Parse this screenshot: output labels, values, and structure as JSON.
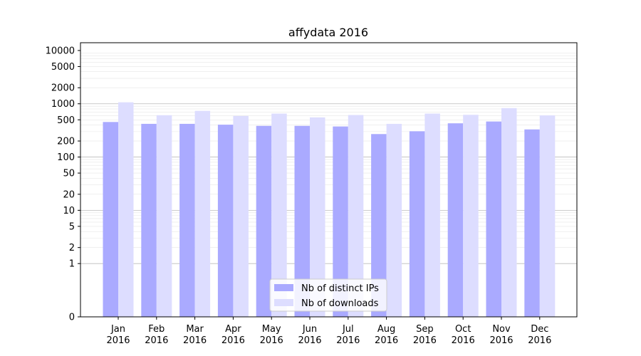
{
  "chart_data": {
    "type": "bar",
    "title": "affydata 2016",
    "xlabel": "",
    "ylabel": "",
    "yscale": "symlog",
    "ylim": [
      0,
      14000
    ],
    "yticks": [
      0,
      1,
      2,
      5,
      10,
      20,
      50,
      100,
      200,
      500,
      1000,
      2000,
      5000,
      10000
    ],
    "grid": "horizontal",
    "legend_position": "bottom-center",
    "categories": [
      [
        "Jan",
        "2016"
      ],
      [
        "Feb",
        "2016"
      ],
      [
        "Mar",
        "2016"
      ],
      [
        "Apr",
        "2016"
      ],
      [
        "May",
        "2016"
      ],
      [
        "Jun",
        "2016"
      ],
      [
        "Jul",
        "2016"
      ],
      [
        "Aug",
        "2016"
      ],
      [
        "Sep",
        "2016"
      ],
      [
        "Oct",
        "2016"
      ],
      [
        "Nov",
        "2016"
      ],
      [
        "Dec",
        "2016"
      ]
    ],
    "series": [
      {
        "name": "Nb of distinct IPs",
        "color": "#aaaaff",
        "values": [
          455,
          420,
          420,
          405,
          385,
          385,
          375,
          270,
          305,
          430,
          465,
          330
        ]
      },
      {
        "name": "Nb of downloads",
        "color": "#ddddff",
        "values": [
          1065,
          610,
          735,
          590,
          655,
          555,
          615,
          420,
          655,
          620,
          830,
          605
        ]
      }
    ]
  }
}
